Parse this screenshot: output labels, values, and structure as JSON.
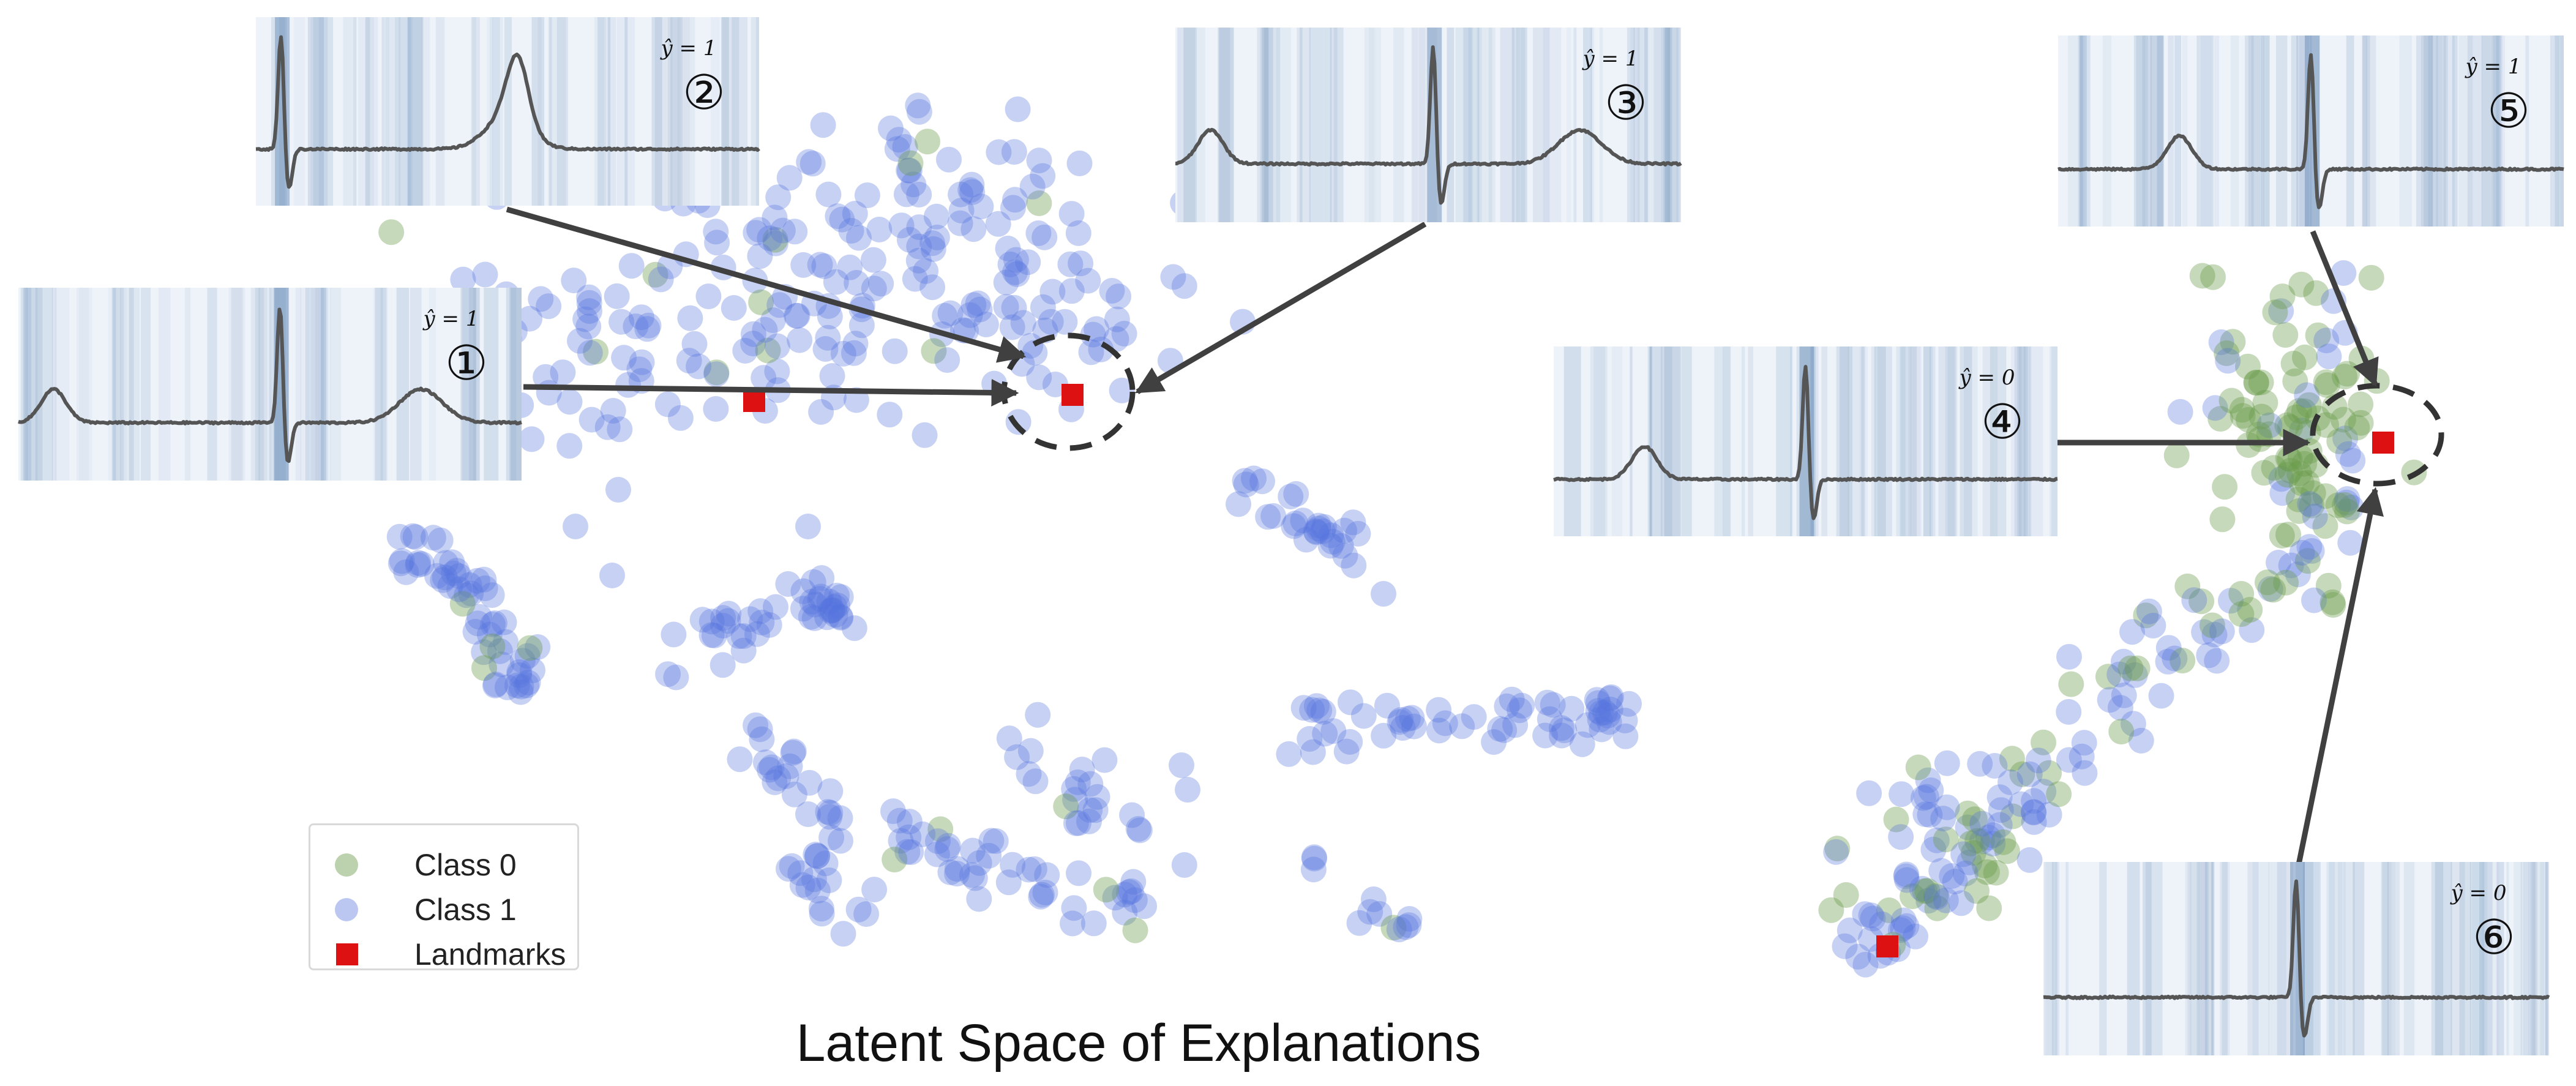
{
  "figure": {
    "title": "Latent Space of Explanations"
  },
  "legend": [
    {
      "label": "Class 0",
      "color": "#6a9a4a",
      "marker": "circle"
    },
    {
      "label": "Class 1",
      "color": "#5572dd",
      "marker": "circle"
    },
    {
      "label": "Landmarks",
      "color": "#dd1111",
      "marker": "square"
    }
  ],
  "colors": {
    "class0": "#6a9a4a",
    "class1": "#5572dd",
    "landmark": "#dd1111",
    "arrow": "#404040",
    "signal": "#555555",
    "heatmap": "#5f86b3"
  },
  "insets": [
    {
      "id": "1",
      "badge": "①",
      "prediction": "ŷ = 1"
    },
    {
      "id": "2",
      "badge": "②",
      "prediction": "ŷ = 1"
    },
    {
      "id": "3",
      "badge": "③",
      "prediction": "ŷ = 1"
    },
    {
      "id": "4",
      "badge": "④",
      "prediction": "ŷ = 0"
    },
    {
      "id": "5",
      "badge": "⑤",
      "prediction": "ŷ = 1"
    },
    {
      "id": "6",
      "badge": "⑥",
      "prediction": "ŷ = 0"
    }
  ],
  "chart_data": {
    "type": "scatter",
    "title": "Latent Space of Explanations",
    "xlabel": "",
    "ylabel": "",
    "grid": false,
    "legend_position": "bottom-left",
    "series": [
      {
        "name": "Class 0",
        "color": "#6a9a4a",
        "marker": "circle"
      },
      {
        "name": "Class 1",
        "color": "#5572dd",
        "marker": "circle"
      },
      {
        "name": "Landmarks",
        "color": "#dd1111",
        "marker": "square"
      }
    ]
  }
}
